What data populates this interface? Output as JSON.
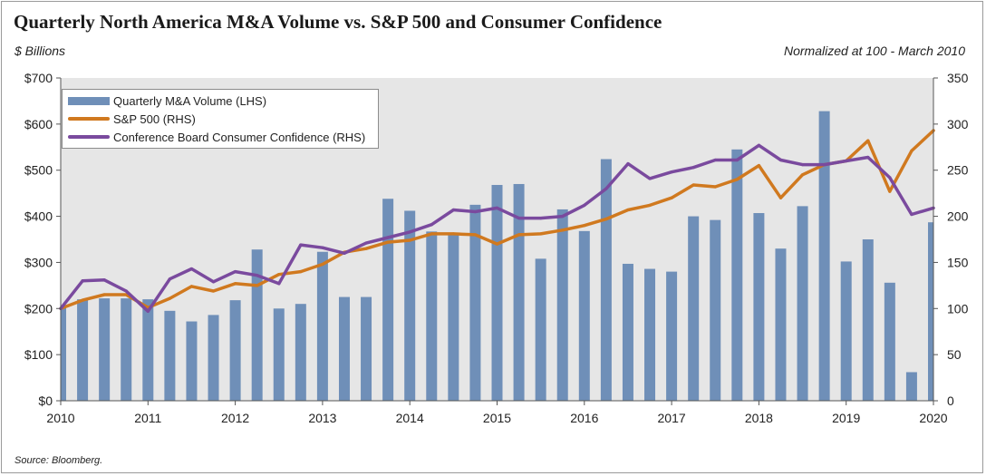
{
  "title": "Quarterly North America M&A Volume vs. S&P 500 and Consumer Confidence",
  "left_unit": "$ Billions",
  "right_note": "Normalized at 100 - March 2010",
  "source": "Source: Bloomberg.",
  "colors": {
    "bars": "#6f8fb8",
    "sp500": "#d0791f",
    "confidence": "#7a4a9e",
    "plot_bg": "#e6e6e6"
  },
  "legend": {
    "bars": "Quarterly M&A Volume (LHS)",
    "sp500": "S&P 500 (RHS)",
    "confidence": "Conference Board Consumer Confidence (RHS)"
  },
  "chart_data": {
    "type": "bar",
    "title": "Quarterly North America M&A Volume vs. S&P 500 and Consumer Confidence",
    "ylabel_left": "$ Billions",
    "ylabel_right": "Normalized at 100 - March 2010",
    "ylim_left": [
      0,
      700
    ],
    "ylim_right": [
      0,
      350
    ],
    "left_ticks": [
      "$0",
      "$100",
      "$200",
      "$300",
      "$400",
      "$500",
      "$600",
      "$700"
    ],
    "right_ticks": [
      "0",
      "50",
      "100",
      "150",
      "200",
      "250",
      "300",
      "350"
    ],
    "x_tick_labels": [
      "2010",
      "2011",
      "2012",
      "2013",
      "2014",
      "2015",
      "2016",
      "2017",
      "2018",
      "2019",
      "2020"
    ],
    "x_range": [
      2010,
      2020
    ],
    "grid": false,
    "legend_position": "top-left",
    "series": [
      {
        "name": "Quarterly M&A Volume (LHS)",
        "type": "bar",
        "x": [
          2010.0,
          2010.25,
          2010.5,
          2010.75,
          2011.0,
          2011.25,
          2011.5,
          2011.75,
          2012.0,
          2012.25,
          2012.5,
          2012.75,
          2013.0,
          2013.25,
          2013.5,
          2013.75,
          2014.0,
          2014.25,
          2014.5,
          2014.75,
          2015.0,
          2015.25,
          2015.5,
          2015.75,
          2016.0,
          2016.25,
          2016.5,
          2016.75,
          2017.0,
          2017.25,
          2017.5,
          2017.75,
          2018.0,
          2018.25,
          2018.5,
          2018.75,
          2019.0,
          2019.25,
          2019.5,
          2019.75,
          2020.0
        ],
        "values": [
          205,
          220,
          222,
          222,
          220,
          195,
          172,
          186,
          218,
          328,
          200,
          210,
          323,
          225,
          225,
          438,
          412,
          367,
          363,
          425,
          468,
          470,
          308,
          415,
          368,
          524,
          297,
          286,
          280,
          400,
          392,
          545,
          407,
          330,
          422,
          628,
          302,
          350,
          256,
          62,
          387
        ]
      },
      {
        "name": "S&P 500 (RHS)",
        "type": "line",
        "x": [
          2010.0,
          2010.25,
          2010.5,
          2010.75,
          2011.0,
          2011.25,
          2011.5,
          2011.75,
          2012.0,
          2012.25,
          2012.5,
          2012.75,
          2013.0,
          2013.25,
          2013.5,
          2013.75,
          2014.0,
          2014.25,
          2014.5,
          2014.75,
          2015.0,
          2015.25,
          2015.5,
          2015.75,
          2016.0,
          2016.25,
          2016.5,
          2016.75,
          2017.0,
          2017.25,
          2017.5,
          2017.75,
          2018.0,
          2018.25,
          2018.5,
          2018.75,
          2019.0,
          2019.25,
          2019.5,
          2019.75,
          2020.0
        ],
        "values": [
          100,
          109,
          115,
          115,
          101,
          111,
          124,
          119,
          127,
          125,
          137,
          140,
          148,
          161,
          165,
          172,
          174,
          181,
          181,
          180,
          170,
          180,
          181,
          185,
          190,
          197,
          207,
          212,
          220,
          234,
          232,
          240,
          255,
          220,
          245,
          256,
          260,
          282,
          227,
          271,
          293
        ]
      },
      {
        "name": "Conference Board Consumer Confidence (RHS)",
        "type": "line",
        "x": [
          2010.0,
          2010.25,
          2010.5,
          2010.75,
          2011.0,
          2011.25,
          2011.5,
          2011.75,
          2012.0,
          2012.25,
          2012.5,
          2012.75,
          2013.0,
          2013.25,
          2013.5,
          2013.75,
          2014.0,
          2014.25,
          2014.5,
          2014.75,
          2015.0,
          2015.25,
          2015.5,
          2015.75,
          2016.0,
          2016.25,
          2016.5,
          2016.75,
          2017.0,
          2017.25,
          2017.5,
          2017.75,
          2018.0,
          2018.25,
          2018.5,
          2018.75,
          2019.0,
          2019.25,
          2019.5,
          2019.75,
          2020.0
        ],
        "values": [
          100,
          130,
          131,
          119,
          97,
          132,
          143,
          129,
          140,
          136,
          127,
          169,
          166,
          160,
          171,
          177,
          183,
          191,
          207,
          205,
          209,
          198,
          198,
          200,
          212,
          230,
          257,
          241,
          248,
          253,
          261,
          261,
          277,
          261,
          256,
          256,
          260,
          264,
          242,
          202,
          209
        ]
      }
    ]
  }
}
